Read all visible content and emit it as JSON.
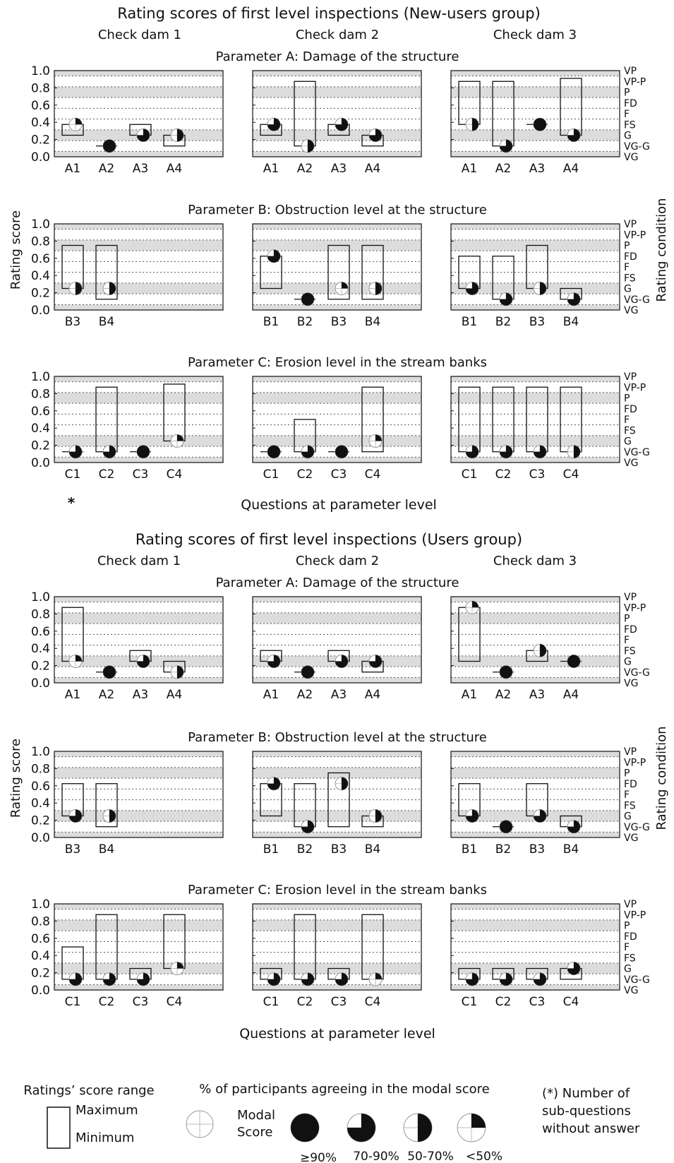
{
  "rating_labels": [
    "VP",
    "VP-P",
    "P",
    "FD",
    "F",
    "FS",
    "G",
    "VG-G",
    "VG"
  ],
  "y_ticks": [
    "1.0",
    "0.8",
    "0.6",
    "0.4",
    "0.2",
    "0.0"
  ],
  "y_axis_label": "Rating score",
  "right_axis_label": "Rating condition",
  "x_axis_label": "Questions at parameter level",
  "column_titles": [
    "Check dam 1",
    "Check dam 2",
    "Check dam 3"
  ],
  "param_titles": [
    "Parameter A: Damage of the structure",
    "Parameter B: Obstruction level at the structure",
    "Parameter C: Erosion level in the stream banks"
  ],
  "asterisk_note": "*",
  "legend": {
    "range_title": "Ratings’ score range",
    "maximum": "Maximum",
    "minimum": "Minimum",
    "agree_title": "% of participants agreeing in the modal score",
    "modal_line1": "Modal",
    "modal_line2": "Score",
    "levels": [
      "≥90%",
      "70-90%",
      "50-70%",
      "<50%"
    ],
    "note_line1": "(*) Number of",
    "note_line2": "sub-questions",
    "note_line3": "without answer"
  },
  "chart_data": [
    {
      "type": "range-modal",
      "title": "Rating scores of first level inspections (New-users group)",
      "rows": [
        {
          "panels": [
            {
              "categories": [
                "A1",
                "A2",
                "A3",
                "A4"
              ],
              "min": [
                0.25,
                0.125,
                0.25,
                0.125
              ],
              "max": [
                0.375,
                0.125,
                0.375,
                0.25
              ],
              "modal": [
                0.375,
                0.125,
                0.25,
                0.25
              ],
              "agreement": [
                "<50%",
                "≥90%",
                "70-90%",
                "50-70%"
              ]
            },
            {
              "categories": [
                "A1",
                "A2",
                "A3",
                "A4"
              ],
              "min": [
                0.25,
                0.125,
                0.25,
                0.125
              ],
              "max": [
                0.375,
                0.875,
                0.375,
                0.25
              ],
              "modal": [
                0.375,
                0.125,
                0.375,
                0.25
              ],
              "agreement": [
                "70-90%",
                "50-70%",
                "70-90%",
                "70-90%"
              ]
            },
            {
              "categories": [
                "A1",
                "A2",
                "A3",
                "A4"
              ],
              "min": [
                0.375,
                0.125,
                0.375,
                0.25
              ],
              "max": [
                0.875,
                0.875,
                0.375,
                0.91
              ],
              "modal": [
                0.375,
                0.125,
                0.375,
                0.25
              ],
              "agreement": [
                "50-70%",
                "70-90%",
                "≥90%",
                "70-90%"
              ]
            }
          ]
        },
        {
          "panels": [
            {
              "categories": [
                "B3",
                "B4"
              ],
              "min": [
                0.25,
                0.125
              ],
              "max": [
                0.75,
                0.75
              ],
              "modal": [
                0.25,
                0.25
              ],
              "agreement": [
                "50-70%",
                "50-70%"
              ]
            },
            {
              "categories": [
                "B1",
                "B2",
                "B3",
                "B4"
              ],
              "min": [
                0.25,
                0.125,
                0.125,
                0.125
              ],
              "max": [
                0.625,
                0.125,
                0.75,
                0.75
              ],
              "modal": [
                0.625,
                0.125,
                0.25,
                0.25
              ],
              "agreement": [
                "70-90%",
                "≥90%",
                "<50%",
                "50-70%"
              ]
            },
            {
              "categories": [
                "B1",
                "B2",
                "B3",
                "B4"
              ],
              "min": [
                0.25,
                0.125,
                0.25,
                0.125
              ],
              "max": [
                0.625,
                0.625,
                0.75,
                0.25
              ],
              "modal": [
                0.25,
                0.125,
                0.25,
                0.125
              ],
              "agreement": [
                "70-90%",
                "70-90%",
                "50-70%",
                "70-90%"
              ]
            }
          ]
        },
        {
          "panels": [
            {
              "categories": [
                "C1",
                "C2",
                "C3",
                "C4"
              ],
              "min": [
                0.125,
                0.125,
                0.125,
                0.25
              ],
              "max": [
                0.125,
                0.875,
                0.125,
                0.91
              ],
              "modal": [
                0.125,
                0.125,
                0.125,
                0.25
              ],
              "agreement": [
                "70-90%",
                "70-90%",
                "≥90%",
                "<50%"
              ]
            },
            {
              "categories": [
                "C1",
                "C2",
                "C3",
                "C4"
              ],
              "min": [
                0.125,
                0.125,
                0.125,
                0.125
              ],
              "max": [
                0.125,
                0.5,
                0.125,
                0.875
              ],
              "modal": [
                0.125,
                0.125,
                0.125,
                0.25
              ],
              "agreement": [
                "≥90%",
                "70-90%",
                "≥90%",
                "<50%"
              ]
            },
            {
              "categories": [
                "C1",
                "C2",
                "C3",
                "C4"
              ],
              "min": [
                0.125,
                0.125,
                0.125,
                0.125
              ],
              "max": [
                0.875,
                0.875,
                0.875,
                0.875
              ],
              "modal": [
                0.125,
                0.125,
                0.125,
                0.125
              ],
              "agreement": [
                "70-90%",
                "70-90%",
                "70-90%",
                "50-70%"
              ]
            }
          ]
        }
      ]
    },
    {
      "type": "range-modal",
      "title": "Rating scores of first level inspections (Users group)",
      "rows": [
        {
          "panels": [
            {
              "categories": [
                "A1",
                "A2",
                "A3",
                "A4"
              ],
              "min": [
                0.25,
                0.125,
                0.25,
                0.125
              ],
              "max": [
                0.875,
                0.125,
                0.375,
                0.25
              ],
              "modal": [
                0.25,
                0.125,
                0.25,
                0.125
              ],
              "agreement": [
                "<50%",
                "≥90%",
                "70-90%",
                "50-70%"
              ]
            },
            {
              "categories": [
                "A1",
                "A2",
                "A3",
                "A4"
              ],
              "min": [
                0.25,
                0.125,
                0.25,
                0.125
              ],
              "max": [
                0.375,
                0.125,
                0.375,
                0.25
              ],
              "modal": [
                0.25,
                0.125,
                0.25,
                0.25
              ],
              "agreement": [
                "70-90%",
                "≥90%",
                "70-90%",
                "70-90%"
              ]
            },
            {
              "categories": [
                "A1",
                "A2",
                "A3",
                "A4"
              ],
              "min": [
                0.25,
                0.125,
                0.25,
                0.25
              ],
              "max": [
                0.875,
                0.125,
                0.375,
                0.25
              ],
              "modal": [
                0.875,
                0.125,
                0.375,
                0.25
              ],
              "agreement": [
                "<50%",
                "≥90%",
                "50-70%",
                "≥90%"
              ]
            }
          ]
        },
        {
          "panels": [
            {
              "categories": [
                "B3",
                "B4"
              ],
              "min": [
                0.25,
                0.125
              ],
              "max": [
                0.625,
                0.625
              ],
              "modal": [
                0.25,
                0.25
              ],
              "agreement": [
                "70-90%",
                "50-70%"
              ]
            },
            {
              "categories": [
                "B1",
                "B2",
                "B3",
                "B4"
              ],
              "min": [
                0.25,
                0.125,
                0.125,
                0.125
              ],
              "max": [
                0.625,
                0.625,
                0.75,
                0.25
              ],
              "modal": [
                0.625,
                0.125,
                0.625,
                0.25
              ],
              "agreement": [
                "70-90%",
                "70-90%",
                "50-70%",
                "50-70%"
              ]
            },
            {
              "categories": [
                "B1",
                "B2",
                "B3",
                "B4"
              ],
              "min": [
                0.25,
                0.125,
                0.25,
                0.125
              ],
              "max": [
                0.625,
                0.125,
                0.625,
                0.25
              ],
              "modal": [
                0.25,
                0.125,
                0.25,
                0.125
              ],
              "agreement": [
                "70-90%",
                "≥90%",
                "70-90%",
                "70-90%"
              ]
            }
          ]
        },
        {
          "panels": [
            {
              "categories": [
                "C1",
                "C2",
                "C3",
                "C4"
              ],
              "min": [
                0.125,
                0.125,
                0.125,
                0.25
              ],
              "max": [
                0.5,
                0.875,
                0.25,
                0.875
              ],
              "modal": [
                0.125,
                0.125,
                0.125,
                0.25
              ],
              "agreement": [
                "70-90%",
                "70-90%",
                "70-90%",
                "<50%"
              ]
            },
            {
              "categories": [
                "C1",
                "C2",
                "C3",
                "C4"
              ],
              "min": [
                0.125,
                0.125,
                0.125,
                0.125
              ],
              "max": [
                0.25,
                0.875,
                0.25,
                0.875
              ],
              "modal": [
                0.125,
                0.125,
                0.125,
                0.125
              ],
              "agreement": [
                "70-90%",
                "70-90%",
                "70-90%",
                "<50%"
              ]
            },
            {
              "categories": [
                "C1",
                "C2",
                "C3",
                "C4"
              ],
              "min": [
                0.125,
                0.125,
                0.125,
                0.125
              ],
              "max": [
                0.25,
                0.25,
                0.25,
                0.25
              ],
              "modal": [
                0.125,
                0.125,
                0.125,
                0.25
              ],
              "agreement": [
                "70-90%",
                "70-90%",
                "70-90%",
                "70-90%"
              ]
            }
          ]
        }
      ]
    }
  ]
}
